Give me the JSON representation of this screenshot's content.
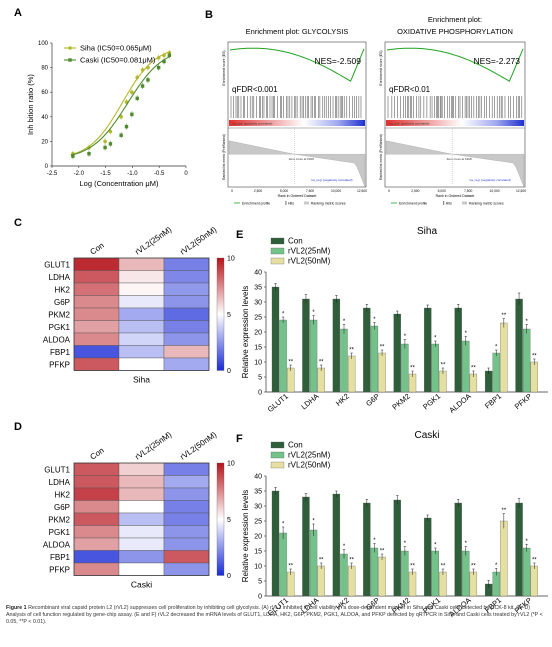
{
  "panels": {
    "A": "A",
    "B": "B",
    "C": "C",
    "D": "D",
    "E": "E",
    "F": "F"
  },
  "colors": {
    "siha_line": "#b5b82a",
    "caski_line": "#4f8a2e",
    "con": "#2e5e3a",
    "rvl2_25": "#72c28a",
    "rvl2_50": "#e6dfa2",
    "hm_high": "#b5121b",
    "hm_mid": "#ffffff",
    "hm_low": "#1a2bd6",
    "gsea_green": "#1fa21f"
  },
  "chart_data": [
    {
      "id": "A",
      "type": "line",
      "xlabel": "Log (Concentration μM)",
      "ylabel": "Inh bition ratio (%)",
      "xlim": [
        -2.5,
        0
      ],
      "ylim": [
        0,
        100
      ],
      "xticks": [
        "-2.5",
        "-2.0",
        "-1.5",
        "-1.0",
        "-0.5",
        "0"
      ],
      "yticks": [
        "0",
        "20",
        "40",
        "60",
        "80",
        "100"
      ],
      "legend": [
        "Siha (IC50=0.065μM)",
        "Caski (IC50=0.081μM)"
      ],
      "legend_position": "top-left",
      "series": [
        {
          "name": "Siha (IC50=0.065μM)",
          "logIC50": -1.187,
          "hill": 1.4,
          "top": 98,
          "bottom": 5,
          "x": [
            -2.11,
            -1.81,
            -1.51,
            -1.41,
            -1.21,
            -1.11,
            -1.01,
            -0.91,
            -0.81,
            -0.71,
            -0.51,
            -0.41,
            -0.31
          ],
          "y": [
            10,
            15,
            20,
            28,
            40,
            52,
            60,
            72,
            78,
            80,
            88,
            90,
            92
          ]
        },
        {
          "name": "Caski (IC50=0.081μM)",
          "logIC50": -1.09,
          "hill": 1.3,
          "top": 97,
          "bottom": 5,
          "x": [
            -2.11,
            -1.81,
            -1.51,
            -1.41,
            -1.21,
            -1.11,
            -1.01,
            -0.91,
            -0.81,
            -0.71,
            -0.51,
            -0.41,
            -0.31
          ],
          "y": [
            8,
            10,
            15,
            18,
            25,
            32,
            42,
            55,
            65,
            70,
            80,
            85,
            90
          ]
        }
      ]
    },
    {
      "id": "B1",
      "type": "line",
      "title": "Enrichment plot: GLYCOLYSIS",
      "stat": "NES=-2.509",
      "fdr": "qFDR<0.001",
      "xlabel": "Rank in Ordered Dataset",
      "ylabel": "Enrichment score (ES)",
      "ylabel2": "Ranked list metric (PreRanked)",
      "xticks": [
        "0",
        "2,500",
        "5,000",
        "7,500",
        "10,000",
        "12,500"
      ],
      "pos_label": "'na_pos' (positively correlated)",
      "neg_label": "'na_neg' (negatively correlated)",
      "zero_label": "Zero cross at 6398",
      "legend": [
        "Enrichment profile",
        "Hits",
        "Ranking metric scores"
      ]
    },
    {
      "id": "B2",
      "type": "line",
      "title": "Enrichment plot:\nOXIDATIVE PHOSPHORYLATION",
      "stat": "NES=-2.273",
      "fdr": "qFDR<0.01",
      "xlabel": "Rank in Ordered Dataset",
      "ylabel": "Enrichment score (ES)",
      "ylabel2": "Ranked list metric (PreRanked)",
      "xticks": [
        "0",
        "2,500",
        "5,000",
        "7,500",
        "10,000",
        "12,500"
      ],
      "pos_label": "'na_pos' (positively correlated)",
      "neg_label": "'na_neg' (negatively correlated)",
      "zero_label": "Zero cross at 6398",
      "legend": [
        "Enrichment profile",
        "Hits",
        "Ranking metric scores"
      ]
    },
    {
      "id": "C",
      "type": "heatmap",
      "title": "Siha",
      "columns": [
        "Con",
        "rVL2(25nM)",
        "rVL2(50nM)"
      ],
      "rows": [
        "GLUT1",
        "LDHA",
        "HK2",
        "G6P",
        "PKM2",
        "PGK1",
        "ALDOA",
        "FBP1",
        "PFKP"
      ],
      "values": [
        [
          9.5,
          6.5,
          2.0
        ],
        [
          8.5,
          5.5,
          2.2
        ],
        [
          8.0,
          5.2,
          2.6
        ],
        [
          7.5,
          4.5,
          2.5
        ],
        [
          7.5,
          3.0,
          1.5
        ],
        [
          7.0,
          3.5,
          2.0
        ],
        [
          7.5,
          4.0,
          2.5
        ],
        [
          1.0,
          3.5,
          6.5
        ],
        [
          8.5,
          5.0,
          3.0
        ]
      ],
      "scale": {
        "min": 0,
        "max": 10,
        "ticks": [
          "0",
          "5",
          "10"
        ]
      }
    },
    {
      "id": "D",
      "type": "heatmap",
      "title": "Caski",
      "columns": [
        "Con",
        "rVL2(25nM)",
        "rVL2(50nM)"
      ],
      "rows": [
        "GLUT1",
        "LDHA",
        "HK2",
        "G6P",
        "PKM2",
        "PGK1",
        "ALDOA",
        "FBP1",
        "PFKP"
      ],
      "values": [
        [
          8.5,
          6.0,
          2.0
        ],
        [
          8.5,
          6.5,
          3.0
        ],
        [
          9.0,
          6.5,
          2.5
        ],
        [
          7.5,
          5.0,
          2.0
        ],
        [
          8.5,
          3.5,
          2.0
        ],
        [
          7.5,
          4.5,
          2.5
        ],
        [
          7.0,
          4.5,
          2.5
        ],
        [
          1.0,
          2.5,
          8.5
        ],
        [
          7.5,
          5.0,
          2.5
        ]
      ],
      "scale": {
        "min": 0,
        "max": 10,
        "ticks": [
          "0",
          "5",
          "10"
        ]
      }
    },
    {
      "id": "E",
      "type": "bar",
      "title": "Siha",
      "ylabel": "Relative expression levels",
      "ylim": [
        0,
        40
      ],
      "yticks": [
        "0",
        "5",
        "10",
        "15",
        "20",
        "25",
        "30",
        "35",
        "40"
      ],
      "categories": [
        "GLUT1",
        "LDHA",
        "HK2",
        "G6P",
        "PKM2",
        "PGK1",
        "ALDOA",
        "FBP1",
        "PFKP"
      ],
      "legend_position": "top-left",
      "series": [
        {
          "name": "Con",
          "values": [
            35,
            31,
            31,
            28,
            26,
            28,
            28,
            7,
            31
          ],
          "err": [
            1.2,
            1.5,
            1.2,
            1.2,
            1,
            1,
            1.2,
            1,
            2
          ],
          "sig": [
            "",
            "",
            "",
            "",
            "",
            "",
            "",
            "",
            ""
          ]
        },
        {
          "name": "rVL2(25nM)",
          "values": [
            24,
            24,
            21,
            22,
            16,
            16,
            17,
            13,
            21
          ],
          "err": [
            1,
            1.5,
            1.5,
            1.2,
            1.5,
            1,
            1.5,
            1,
            1.5
          ],
          "sig": [
            "*",
            "*",
            "*",
            "*",
            "*",
            "*",
            "*",
            "*",
            "*"
          ]
        },
        {
          "name": "rVL2(50nM)",
          "values": [
            8,
            8,
            12,
            13,
            6,
            7,
            6,
            23,
            10
          ],
          "err": [
            1,
            1,
            1,
            1,
            1,
            1,
            1,
            1.5,
            1
          ],
          "sig": [
            "**",
            "**",
            "**",
            "**",
            "**",
            "**",
            "**",
            "**",
            "**"
          ]
        }
      ]
    },
    {
      "id": "F",
      "type": "bar",
      "title": "Caski",
      "ylabel": "Relative expression levels",
      "ylim": [
        0,
        40
      ],
      "yticks": [
        "0",
        "5",
        "10",
        "15",
        "20",
        "25",
        "30",
        "35",
        "40"
      ],
      "categories": [
        "GLUT1",
        "LDHA",
        "HK2",
        "G6P",
        "PKM2",
        "PGK1",
        "ALDOA",
        "FBP1",
        "PFKP"
      ],
      "legend_position": "top-left",
      "series": [
        {
          "name": "Con",
          "values": [
            35,
            33,
            34,
            31,
            32,
            26,
            31,
            4,
            31
          ],
          "err": [
            1.2,
            1.2,
            1,
            1.2,
            1.5,
            1,
            1.2,
            1.2,
            1.5
          ],
          "sig": [
            "",
            "",
            "",
            "",
            "",
            "",
            "",
            "",
            ""
          ]
        },
        {
          "name": "rVL2(25nM)",
          "values": [
            21,
            22,
            14,
            16,
            15,
            15,
            15,
            8,
            16
          ],
          "err": [
            2,
            2,
            1.5,
            1.5,
            1.5,
            1,
            1.5,
            1.2,
            1.2
          ],
          "sig": [
            "*",
            "*",
            "*",
            "*",
            "*",
            "*",
            "*",
            "*",
            "*"
          ]
        },
        {
          "name": "rVL2(50nM)",
          "values": [
            8,
            10,
            10,
            13,
            8,
            8,
            8,
            25,
            10
          ],
          "err": [
            1,
            1,
            1,
            1,
            1,
            1,
            1,
            2.5,
            1
          ],
          "sig": [
            "**",
            "**",
            "**",
            "**",
            "**",
            "**",
            "**",
            "**",
            "**"
          ]
        }
      ]
    }
  ],
  "caption": {
    "lead": "Figure 1",
    "text": " Recombinant viral capsid protein L2 (rVL2) suppresses cell proliferation by inhibiting cell glycolysis. (A) rVL2 inhibited in cell viability in a dose-dependent manner in Siha and Caski cells detected by CCK-8 kit. (B–D) Analysis of cell function regulated by gene-chip assay. (E and F) rVL2 decreased the mRNA levels of GLUT1, LDHA, HK2, G6P, PKM2, PGK1, ALDOA, and PFKP detected by qRTPCR in Siha and Caski cells treated by rVL2 (*P < 0.05, **P < 0.01)."
  }
}
